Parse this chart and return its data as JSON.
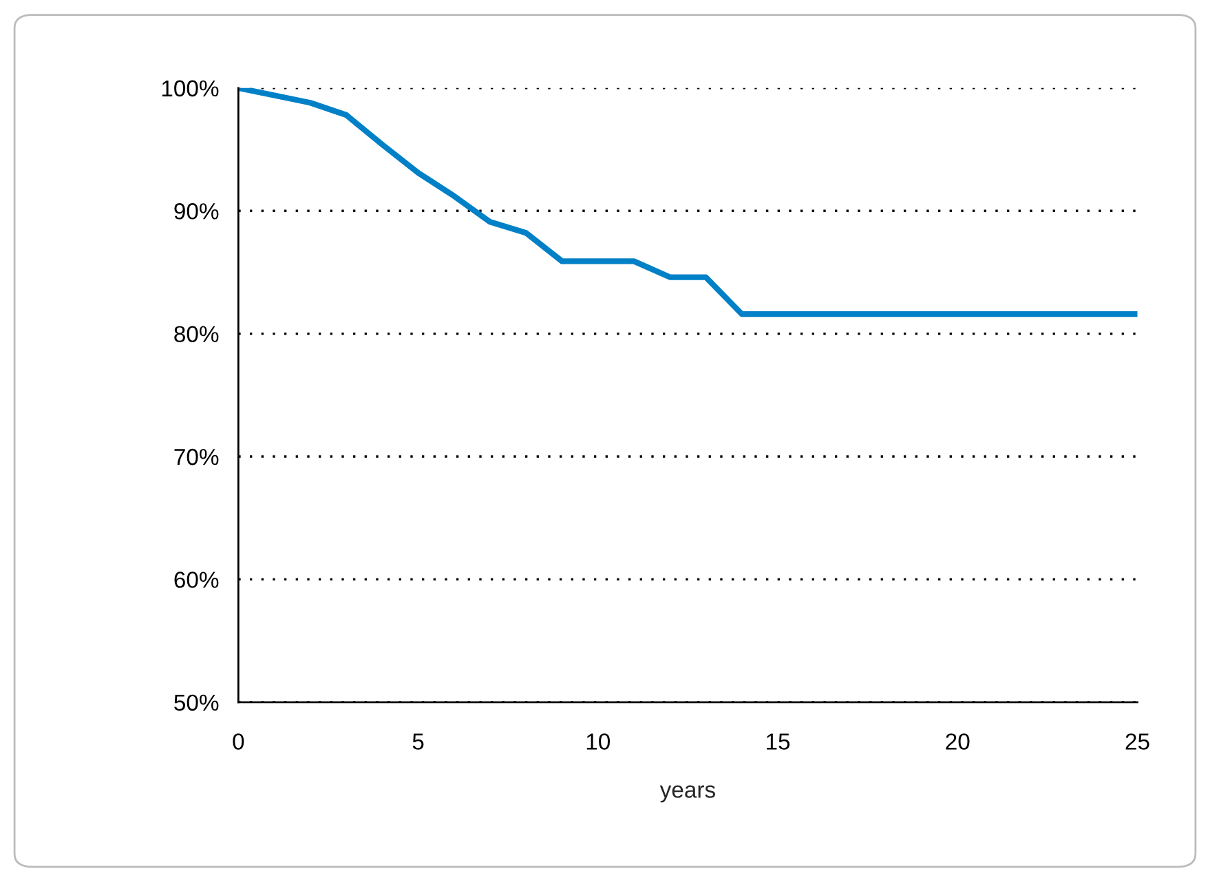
{
  "chart_data": {
    "type": "line",
    "xlabel": "years",
    "x": [
      0,
      1,
      2,
      3,
      4,
      5,
      6,
      7,
      8,
      9,
      10,
      11,
      12,
      13,
      14,
      15,
      16,
      17,
      18,
      19,
      20,
      21,
      22,
      23,
      24,
      25
    ],
    "series": [
      {
        "color": "#0080c6",
        "values": [
          100,
          99.4,
          98.8,
          97.8,
          95.4,
          93.1,
          91.2,
          89.1,
          88.2,
          85.9,
          85.9,
          85.9,
          84.6,
          84.6,
          81.6,
          81.6,
          81.6,
          81.6,
          81.6,
          81.6,
          81.6,
          81.6,
          81.6,
          81.6,
          81.6,
          81.6
        ]
      }
    ],
    "xlim": [
      0,
      25
    ],
    "xticks": [
      0,
      5,
      10,
      15,
      20,
      25
    ],
    "ylim": [
      50,
      100
    ],
    "yticks": [
      {
        "value": 50,
        "label": "50%"
      },
      {
        "value": 60,
        "label": "60%"
      },
      {
        "value": 70,
        "label": "70%"
      },
      {
        "value": 80,
        "label": "80%"
      },
      {
        "value": 90,
        "label": "90%"
      },
      {
        "value": 100,
        "label": "100%"
      }
    ],
    "grid": "y",
    "line_style": "solid",
    "marker": "none",
    "legend": false
  }
}
